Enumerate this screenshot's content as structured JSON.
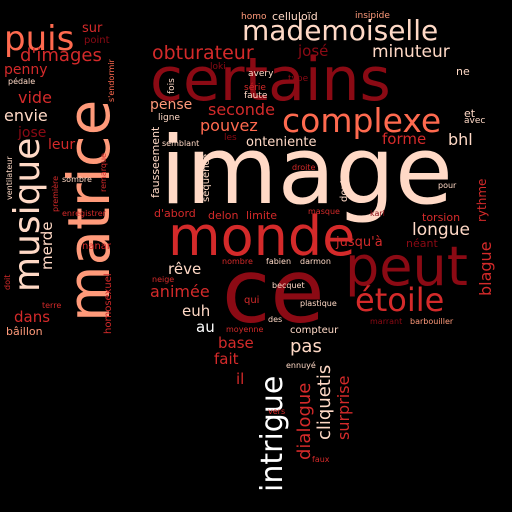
{
  "colors": {
    "background": "#000000",
    "dark_red": "#8b0a14",
    "red": "#d42a2a",
    "coral": "#ff6a4f",
    "salmon": "#ff9a7a",
    "pale": "#ffd9c6",
    "white": "#ffffff"
  },
  "words": [
    {
      "text": "image",
      "tone": "pale"
    },
    {
      "text": "certains",
      "tone": "dark_red"
    },
    {
      "text": "matrice",
      "tone": "salmon"
    },
    {
      "text": "ce",
      "tone": "dark_red"
    },
    {
      "text": "peut",
      "tone": "dark_red"
    },
    {
      "text": "monde",
      "tone": "red"
    },
    {
      "text": "complexe",
      "tone": "coral"
    },
    {
      "text": "mademoiselle",
      "tone": "pale"
    },
    {
      "text": "musique",
      "tone": "pale"
    },
    {
      "text": "puis",
      "tone": "coral"
    },
    {
      "text": "étoile",
      "tone": "red"
    },
    {
      "text": "intrigue",
      "tone": "white"
    },
    {
      "text": "d'images",
      "tone": "red"
    },
    {
      "text": "obturateur",
      "tone": "red"
    },
    {
      "text": "josé",
      "tone": "dark_red"
    },
    {
      "text": "minuteur",
      "tone": "pale"
    },
    {
      "text": "penny",
      "tone": "red"
    },
    {
      "text": "sur",
      "tone": "red"
    },
    {
      "text": "point",
      "tone": "dark_red"
    },
    {
      "text": "vide",
      "tone": "red"
    },
    {
      "text": "envie",
      "tone": "pale"
    },
    {
      "text": "jose",
      "tone": "dark_red"
    },
    {
      "text": "leur",
      "tone": "red"
    },
    {
      "text": "merde",
      "tone": "pale"
    },
    {
      "text": "dans",
      "tone": "red"
    },
    {
      "text": "bâillon",
      "tone": "salmon"
    },
    {
      "text": "pense",
      "tone": "salmon"
    },
    {
      "text": "seconde",
      "tone": "red"
    },
    {
      "text": "pouvez",
      "tone": "coral"
    },
    {
      "text": "onteniente",
      "tone": "pale"
    },
    {
      "text": "forme",
      "tone": "red"
    },
    {
      "text": "bhl",
      "tone": "pale"
    },
    {
      "text": "longue",
      "tone": "pale"
    },
    {
      "text": "rêve",
      "tone": "pale"
    },
    {
      "text": "animée",
      "tone": "red"
    },
    {
      "text": "euh",
      "tone": "pale"
    },
    {
      "text": "au",
      "tone": "white"
    },
    {
      "text": "base",
      "tone": "red"
    },
    {
      "text": "fait",
      "tone": "red"
    },
    {
      "text": "il",
      "tone": "red"
    },
    {
      "text": "pas",
      "tone": "pale"
    },
    {
      "text": "dialogue",
      "tone": "red"
    },
    {
      "text": "cliquetis",
      "tone": "pale"
    },
    {
      "text": "surprise",
      "tone": "red"
    },
    {
      "text": "blague",
      "tone": "red"
    },
    {
      "text": "rythme",
      "tone": "red"
    },
    {
      "text": "torsion",
      "tone": "red"
    },
    {
      "text": "néant",
      "tone": "dark_red"
    },
    {
      "text": "jusqu'à",
      "tone": "red"
    },
    {
      "text": "d'abord",
      "tone": "red"
    },
    {
      "text": "delon",
      "tone": "red"
    },
    {
      "text": "limite",
      "tone": "red"
    },
    {
      "text": "celluloïd",
      "tone": "pale"
    },
    {
      "text": "homo",
      "tone": "salmon"
    },
    {
      "text": "insipide",
      "tone": "salmon"
    },
    {
      "text": "ne",
      "tone": "pale"
    },
    {
      "text": "loki",
      "tone": "dark_red"
    },
    {
      "text": "avery",
      "tone": "pale"
    },
    {
      "text": "type",
      "tone": "dark_red"
    },
    {
      "text": "série",
      "tone": "red"
    },
    {
      "text": "faute",
      "tone": "pale"
    },
    {
      "text": "fois",
      "tone": "pale"
    },
    {
      "text": "ligne",
      "tone": "pale"
    },
    {
      "text": "les",
      "tone": "dark_red"
    },
    {
      "text": "et",
      "tone": "pale"
    },
    {
      "text": "avec",
      "tone": "pale"
    },
    {
      "text": "pédale",
      "tone": "pale"
    },
    {
      "text": "s'endormir",
      "tone": "coral"
    },
    {
      "text": "ventilateur",
      "tone": "pale"
    },
    {
      "text": "sombre",
      "tone": "pale"
    },
    {
      "text": "première",
      "tone": "red"
    },
    {
      "text": "remarque",
      "tone": "red"
    },
    {
      "text": "enregistrer",
      "tone": "red"
    },
    {
      "text": "fausseement",
      "tone": "pale"
    },
    {
      "text": "séquence",
      "tone": "pale"
    },
    {
      "text": "semblant",
      "tone": "pale"
    },
    {
      "text": "droite",
      "tone": "red"
    },
    {
      "text": "doute",
      "tone": "pale"
    },
    {
      "text": "masque",
      "tone": "red"
    },
    {
      "text": "karl",
      "tone": "dark_red"
    },
    {
      "text": "pour",
      "tone": "pale"
    },
    {
      "text": "nanar",
      "tone": "red"
    },
    {
      "text": "doit",
      "tone": "red"
    },
    {
      "text": "homosexuel",
      "tone": "red"
    },
    {
      "text": "terre",
      "tone": "red"
    },
    {
      "text": "neige",
      "tone": "red"
    },
    {
      "text": "nombre",
      "tone": "red"
    },
    {
      "text": "fabien",
      "tone": "pale"
    },
    {
      "text": "darmon",
      "tone": "pale"
    },
    {
      "text": "becquet",
      "tone": "pale"
    },
    {
      "text": "des",
      "tone": "pale"
    },
    {
      "text": "qui",
      "tone": "red"
    },
    {
      "text": "plastique",
      "tone": "pale"
    },
    {
      "text": "marrant",
      "tone": "dark_red"
    },
    {
      "text": "barbouiller",
      "tone": "salmon"
    },
    {
      "text": "moyenne",
      "tone": "red"
    },
    {
      "text": "compteur",
      "tone": "pale"
    },
    {
      "text": "ennuyé",
      "tone": "pale"
    },
    {
      "text": "vers",
      "tone": "red"
    },
    {
      "text": "faux",
      "tone": "red"
    }
  ]
}
